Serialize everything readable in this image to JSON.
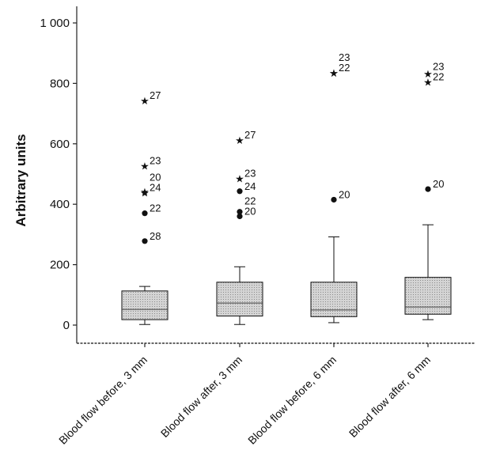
{
  "chart_data": {
    "type": "box",
    "title": "",
    "xlabel": "",
    "ylabel": "Arbitrary units",
    "ylim": [
      -60,
      1040
    ],
    "yticks": [
      0,
      200,
      400,
      600,
      800,
      1000
    ],
    "ytick_labels": [
      "0",
      "200",
      "400",
      "600",
      "800",
      "1 000"
    ],
    "grid": false,
    "legend": "none",
    "categories": [
      "Blood flow before, 3 mm",
      "Blood flow after, 3 mm",
      "Blood flow before, 6 mm",
      "Blood flow after, 6 mm"
    ],
    "boxes": [
      {
        "whisker_low": 2,
        "q1": 18,
        "median": 52,
        "q3": 113,
        "whisker_high": 128,
        "outliers": [
          {
            "value": 278,
            "marker": "circle",
            "label": "28"
          },
          {
            "value": 370,
            "marker": "circle",
            "label": "22"
          },
          {
            "value": 438,
            "marker": "star",
            "label": "24"
          },
          {
            "value": 443,
            "marker": "star",
            "label": "20"
          },
          {
            "value": 527,
            "marker": "star",
            "label": "23"
          },
          {
            "value": 743,
            "marker": "star",
            "label": "27"
          }
        ]
      },
      {
        "whisker_low": 2,
        "q1": 30,
        "median": 73,
        "q3": 142,
        "whisker_high": 193,
        "outliers": [
          {
            "value": 360,
            "marker": "circle",
            "label": "20"
          },
          {
            "value": 375,
            "marker": "circle",
            "label": "22"
          },
          {
            "value": 443,
            "marker": "circle",
            "label": "24"
          },
          {
            "value": 485,
            "marker": "star",
            "label": "23"
          },
          {
            "value": 612,
            "marker": "star",
            "label": "27"
          }
        ]
      },
      {
        "whisker_low": 8,
        "q1": 28,
        "median": 50,
        "q3": 142,
        "whisker_high": 292,
        "outliers": [
          {
            "value": 415,
            "marker": "circle",
            "label": "20"
          },
          {
            "value": 835,
            "marker": "star",
            "label": "22"
          },
          {
            "value": 835,
            "marker": "star",
            "label": "23"
          }
        ]
      },
      {
        "whisker_low": 18,
        "q1": 36,
        "median": 60,
        "q3": 158,
        "whisker_high": 332,
        "outliers": [
          {
            "value": 450,
            "marker": "circle",
            "label": "20"
          },
          {
            "value": 805,
            "marker": "star",
            "label": "22"
          },
          {
            "value": 832,
            "marker": "star",
            "label": "23"
          }
        ]
      }
    ],
    "colors": {
      "box_fill": "#d4d4d4",
      "axis": "#222222",
      "ink": "#111111"
    }
  }
}
